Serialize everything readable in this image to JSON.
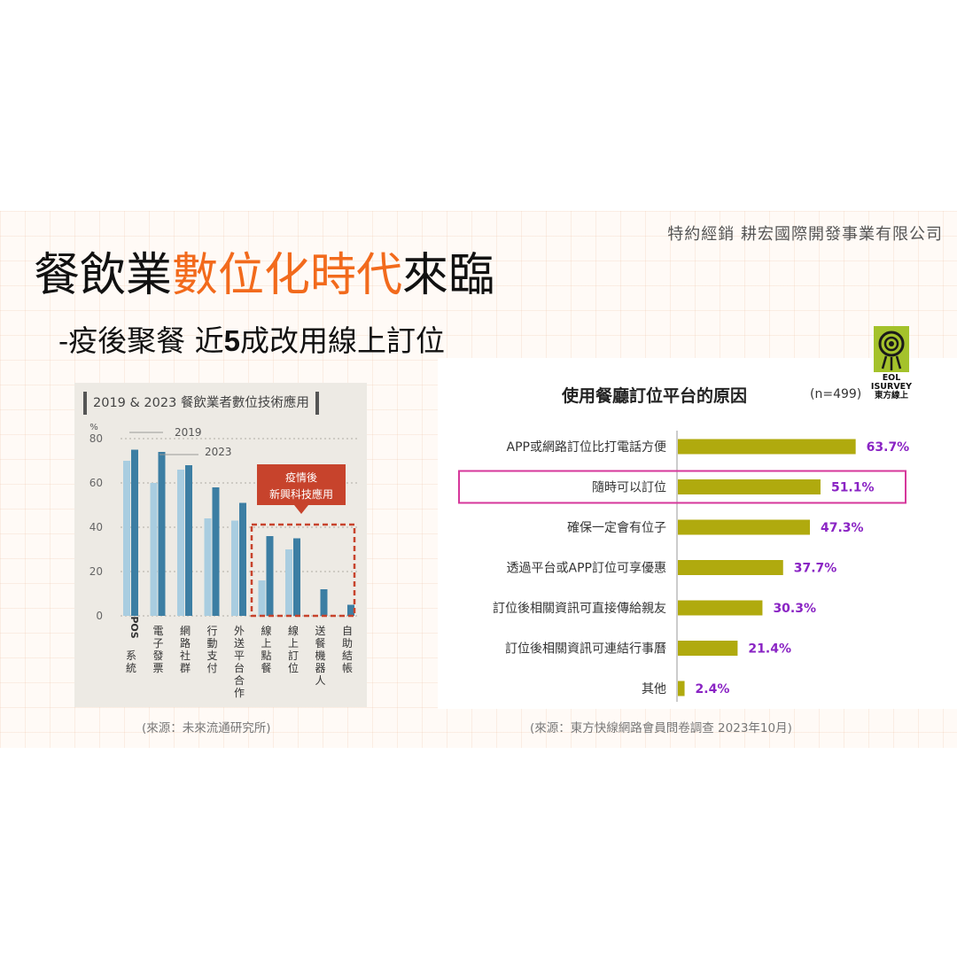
{
  "header": {
    "company": "特約經銷  耕宏國際開發事業有限公司",
    "title_part1": "餐飲業",
    "title_highlight": "數位化時代",
    "title_part2": "來臨",
    "subtitle_prefix": "-疫後聚餐 近",
    "subtitle_bold": "5",
    "subtitle_suffix": "成改用線上訂位"
  },
  "left": {
    "source": "(來源：未來流通研究所)"
  },
  "right": {
    "n_label": "(n=499)",
    "source": "(來源：東方快線網路會員問卷調查 2023年10月)",
    "logo_text_1": "EOL",
    "logo_text_2": "ISURVEY",
    "logo_text_3": "東方線上"
  },
  "colors": {
    "accent_orange": "#f26a1c",
    "bar_2019": "#a9cde0",
    "bar_2023": "#3c7ea3",
    "callout_red": "#c7432c",
    "bar_olive": "#b0aa0e",
    "label_purple": "#8a24c4",
    "highlight_magenta": "#d6379b"
  },
  "chart_data": [
    {
      "type": "bar",
      "title": "2019 & 2023 餐飲業者數位技術應用",
      "ylabel": "%",
      "ylim": [
        0,
        80
      ],
      "yticks": [
        0,
        20,
        40,
        60,
        80
      ],
      "categories": [
        "POS系統",
        "電子發票",
        "網路社群",
        "行動支付",
        "外送平台合作",
        "線上點餐",
        "線上訂位",
        "送餐機器人",
        "自助結帳"
      ],
      "series": [
        {
          "name": "2019",
          "values": [
            70,
            60,
            66,
            44,
            43,
            16,
            30,
            0,
            0
          ]
        },
        {
          "name": "2023",
          "values": [
            75,
            74,
            68,
            58,
            51,
            36,
            35,
            12,
            5
          ]
        }
      ],
      "annotation": {
        "line1": "疫情後",
        "line2": "新興科技應用"
      },
      "grid": "horizontal dotted"
    },
    {
      "type": "bar",
      "orientation": "horizontal",
      "title": "使用餐廳訂位平台的原因",
      "categories": [
        "APP或網路訂位比打電話方便",
        "隨時可以訂位",
        "確保一定會有位子",
        "透過平台或APP訂位可享優惠",
        "訂位後相關資訊可直接傳給親友",
        "訂位後相關資訊可連結行事曆",
        "其他"
      ],
      "values": [
        63.7,
        51.1,
        47.3,
        37.7,
        30.3,
        21.4,
        2.4
      ],
      "value_labels": [
        "63.7%",
        "51.1%",
        "47.3%",
        "37.7%",
        "30.3%",
        "21.4%",
        "2.4%"
      ],
      "highlighted_category": "隨時可以訂位",
      "xlim": [
        0,
        70
      ]
    }
  ]
}
